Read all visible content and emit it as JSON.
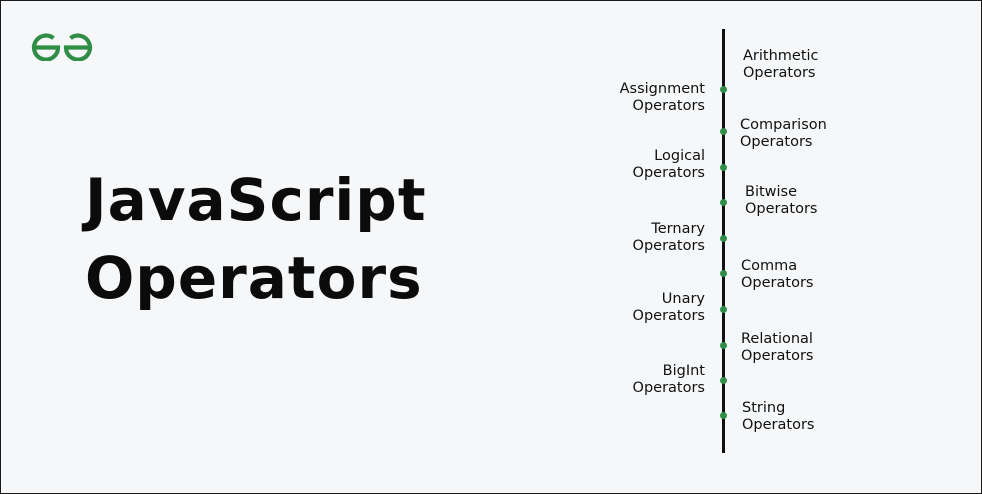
{
  "logo": {
    "name": "geeksforgeeks-logo",
    "color": "#2f8d46"
  },
  "title": {
    "line1": "JavaScript",
    "line2": "Operators"
  },
  "timeline": {
    "accent": "#2f8d46",
    "right": [
      {
        "line1": "Arithmetic",
        "line2": "Operators"
      },
      {
        "line1": "Comparison",
        "line2": "Operators"
      },
      {
        "line1": "Bitwise",
        "line2": "Operators"
      },
      {
        "line1": "Comma",
        "line2": "Operators"
      },
      {
        "line1": "Relational",
        "line2": "Operators"
      },
      {
        "line1": "String",
        "line2": "Operators"
      }
    ],
    "left": [
      {
        "line1": "Assignment",
        "line2": "Operators"
      },
      {
        "line1": "Logical",
        "line2": "Operators"
      },
      {
        "line1": "Ternary",
        "line2": "Operators"
      },
      {
        "line1": "Unary",
        "line2": "Operators"
      },
      {
        "line1": "BigInt",
        "line2": "Operators"
      }
    ]
  }
}
